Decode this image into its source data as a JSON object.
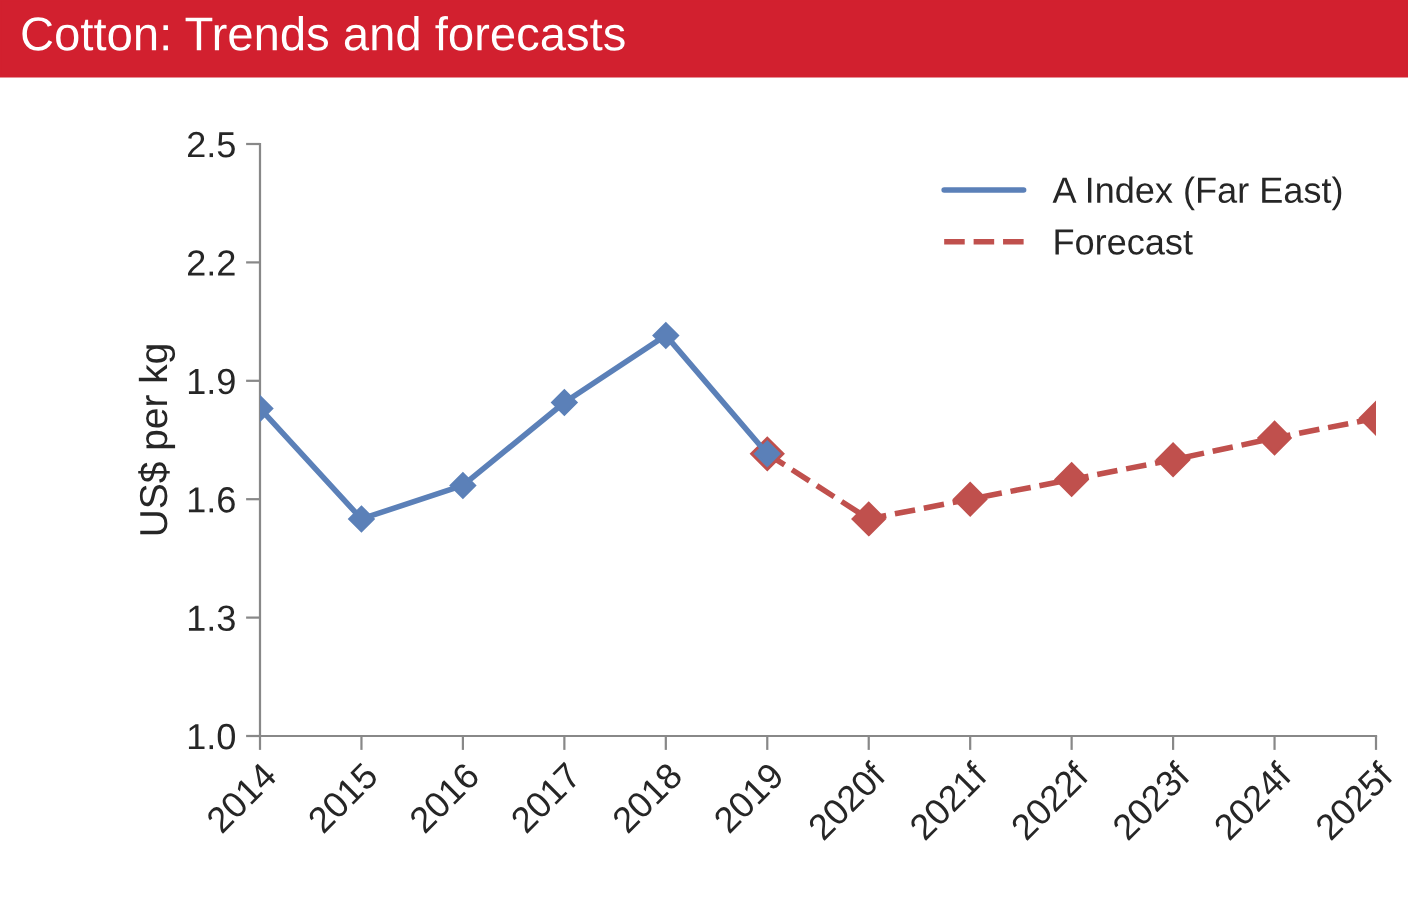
{
  "chart_data": {
    "type": "line",
    "title": "Cotton: Trends and forecasts",
    "ylabel": "US$ per kg",
    "categories": [
      "2014",
      "2015",
      "2016",
      "2017",
      "2018",
      "2019",
      "2020f",
      "2021f",
      "2022f",
      "2023f",
      "2024f",
      "2025f"
    ],
    "series": [
      {
        "name": "A Index (Far East)",
        "color": "#5b80b8",
        "line_style": "solid",
        "values": [
          1.83,
          1.55,
          1.635,
          1.845,
          2.015,
          1.715,
          null,
          null,
          null,
          null,
          null,
          null
        ]
      },
      {
        "name": "Forecast",
        "color": "#c0504d",
        "line_style": "dashed",
        "values": [
          null,
          null,
          null,
          null,
          null,
          1.715,
          1.55,
          1.6,
          1.65,
          1.7,
          1.755,
          1.805
        ]
      }
    ],
    "ylim": [
      1.0,
      2.5
    ],
    "yticks": [
      {
        "value": 1.0,
        "label": "1.0"
      },
      {
        "value": 1.3,
        "label": "1.3"
      },
      {
        "value": 1.6,
        "label": "1.6"
      },
      {
        "value": 1.9,
        "label": "1.9"
      },
      {
        "value": 2.2,
        "label": "2.2"
      },
      {
        "value": 2.5,
        "label": "2.5"
      }
    ],
    "marker": "diamond",
    "grid": false,
    "legend": "top right"
  }
}
